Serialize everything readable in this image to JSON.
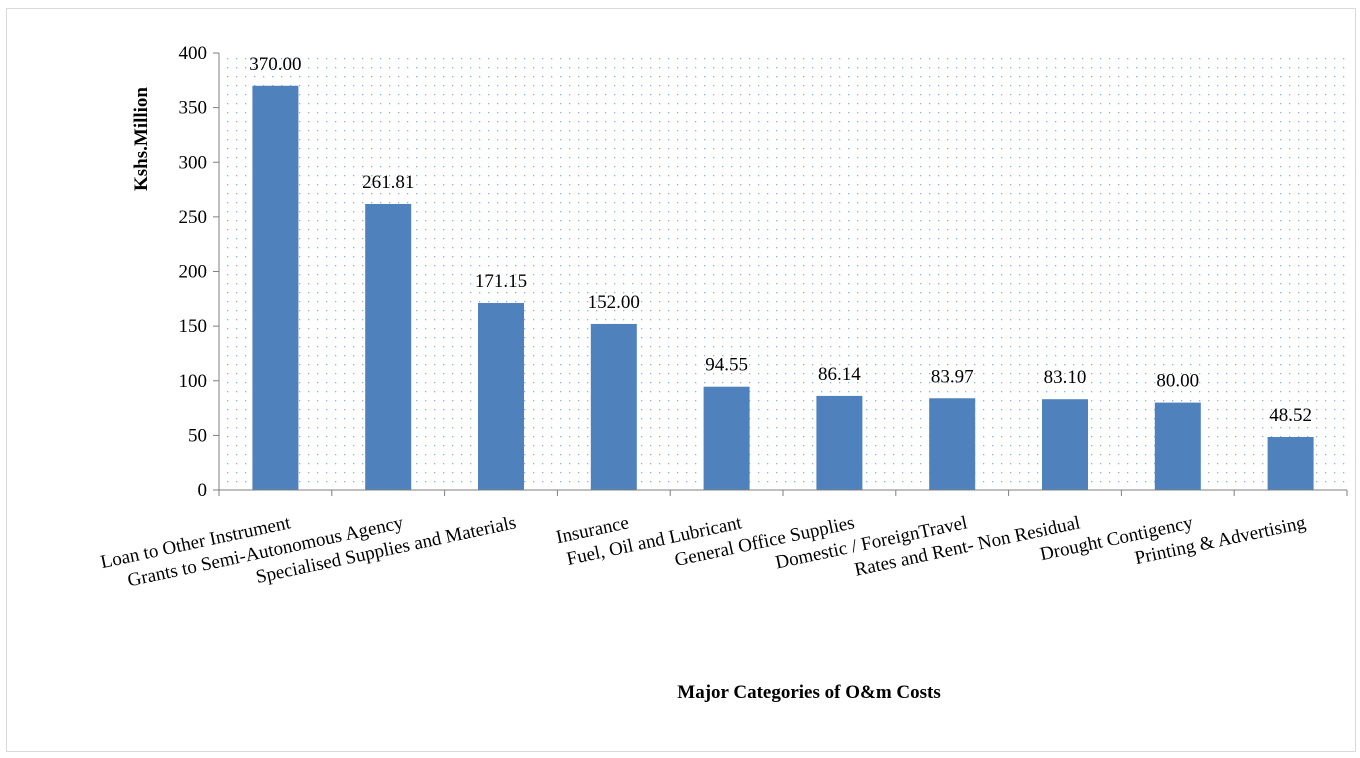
{
  "chart_data": {
    "type": "bar",
    "title": "",
    "xlabel": "Major Categories of O&m Costs",
    "ylabel": "Kshs.Million",
    "ylim": [
      0,
      400
    ],
    "yticks": [
      0,
      50,
      100,
      150,
      200,
      250,
      300,
      350,
      400
    ],
    "grid": "dotted pattern background",
    "legend": "none",
    "colors": {
      "bar": "#4f81bd",
      "plot_dots": "#8db3e2"
    },
    "categories": [
      "Loan to Other Instrument",
      "Grants to Semi-Autonomous Agency",
      "Specialised Supplies and Materials",
      "Insurance",
      "Fuel, Oil and Lubricant",
      "General Office Supplies",
      "Domestic / ForeignTravel",
      "Rates and Rent- Non Residual",
      "Drought Contigency",
      "Printing & Advertising"
    ],
    "values": [
      370.0,
      261.81,
      171.15,
      152.0,
      94.55,
      86.14,
      83.97,
      83.1,
      80.0,
      48.52
    ],
    "data_labels": [
      "370.00",
      "261.81",
      "171.15",
      "152.00",
      "94.55",
      "86.14",
      "83.97",
      "83.10",
      "80.00",
      "48.52"
    ]
  }
}
